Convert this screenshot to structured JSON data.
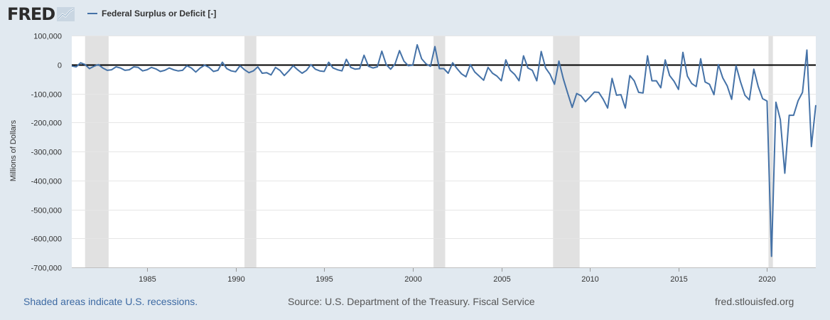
{
  "header": {
    "logo_text": "FRED",
    "logo_icon": "trend-chart-icon"
  },
  "footer": {
    "recession_note": "Shaded areas indicate U.S. recessions.",
    "source": "Source: U.S. Department of the Treasury. Fiscal Service",
    "site": "fred.stlouisfed.org"
  },
  "chart_data": {
    "type": "line",
    "title": "",
    "ylabel": "Millions of Dollars",
    "xlabel": "",
    "x_range": [
      1980.75,
      2022.75
    ],
    "ylim": [
      -700000,
      100000
    ],
    "y_ticks": [
      100000,
      0,
      -100000,
      -200000,
      -300000,
      -400000,
      -500000,
      -600000,
      -700000
    ],
    "y_tick_labels": [
      "100,000",
      "0",
      "-100,000",
      "-200,000",
      "-300,000",
      "-400,000",
      "-500,000",
      "-600,000",
      "-700,000"
    ],
    "x_ticks": [
      1985,
      1990,
      1995,
      2000,
      2005,
      2010,
      2015,
      2020
    ],
    "x_tick_labels": [
      "1985",
      "1990",
      "1995",
      "2000",
      "2005",
      "2010",
      "2015",
      "2020"
    ],
    "grid": true,
    "zero_line": true,
    "legend_position": "top-left",
    "recessions": [
      [
        1981.5,
        1982.83
      ],
      [
        1990.5,
        1991.17
      ],
      [
        2001.17,
        2001.83
      ],
      [
        2007.92,
        2009.42
      ],
      [
        2020.08,
        2020.33
      ]
    ],
    "series": [
      {
        "name": "Federal Surplus or Deficit [-]",
        "color": "#4572a7",
        "x": [
          1980.75,
          1981.0,
          1981.25,
          1981.5,
          1981.75,
          1982.0,
          1982.25,
          1982.5,
          1982.75,
          1983.0,
          1983.25,
          1983.5,
          1983.75,
          1984.0,
          1984.25,
          1984.5,
          1984.75,
          1985.0,
          1985.25,
          1985.5,
          1985.75,
          1986.0,
          1986.25,
          1986.5,
          1986.75,
          1987.0,
          1987.25,
          1987.5,
          1987.75,
          1988.0,
          1988.25,
          1988.5,
          1988.75,
          1989.0,
          1989.25,
          1989.5,
          1989.75,
          1990.0,
          1990.25,
          1990.5,
          1990.75,
          1991.0,
          1991.25,
          1991.5,
          1991.75,
          1992.0,
          1992.25,
          1992.5,
          1992.75,
          1993.0,
          1993.25,
          1993.5,
          1993.75,
          1994.0,
          1994.25,
          1994.5,
          1994.75,
          1995.0,
          1995.25,
          1995.5,
          1995.75,
          1996.0,
          1996.25,
          1996.5,
          1996.75,
          1997.0,
          1997.25,
          1997.5,
          1997.75,
          1998.0,
          1998.25,
          1998.5,
          1998.75,
          1999.0,
          1999.25,
          1999.5,
          1999.75,
          2000.0,
          2000.25,
          2000.5,
          2000.75,
          2001.0,
          2001.25,
          2001.5,
          2001.75,
          2002.0,
          2002.25,
          2002.5,
          2002.75,
          2003.0,
          2003.25,
          2003.5,
          2003.75,
          2004.0,
          2004.25,
          2004.5,
          2004.75,
          2005.0,
          2005.25,
          2005.5,
          2005.75,
          2006.0,
          2006.25,
          2006.5,
          2006.75,
          2007.0,
          2007.25,
          2007.5,
          2007.75,
          2008.0,
          2008.25,
          2008.5,
          2008.75,
          2009.0,
          2009.25,
          2009.5,
          2009.75,
          2010.0,
          2010.25,
          2010.5,
          2010.75,
          2011.0,
          2011.25,
          2011.5,
          2011.75,
          2012.0,
          2012.25,
          2012.5,
          2012.75,
          2013.0,
          2013.25,
          2013.5,
          2013.75,
          2014.0,
          2014.25,
          2014.5,
          2014.75,
          2015.0,
          2015.25,
          2015.5,
          2015.75,
          2016.0,
          2016.25,
          2016.5,
          2016.75,
          2017.0,
          2017.25,
          2017.5,
          2017.75,
          2018.0,
          2018.25,
          2018.5,
          2018.75,
          2019.0,
          2019.25,
          2019.5,
          2019.75,
          2020.0,
          2020.25,
          2020.5,
          2020.75,
          2021.0,
          2021.25,
          2021.5,
          2021.75,
          2022.0,
          2022.25,
          2022.5,
          2022.75
        ],
        "y": [
          -5000,
          -8000,
          6000,
          0,
          -14000,
          -6000,
          0,
          -12000,
          -20000,
          -18000,
          -8000,
          -12000,
          -20000,
          -18000,
          -8000,
          -10000,
          -22000,
          -18000,
          -10000,
          -15000,
          -24000,
          -20000,
          -12000,
          -18000,
          -22000,
          -20000,
          -4000,
          -12000,
          -26000,
          -12000,
          -2000,
          -10000,
          -24000,
          -20000,
          8000,
          -14000,
          -22000,
          -25000,
          -4000,
          -18000,
          -28000,
          -22000,
          -8000,
          -30000,
          -28000,
          -36000,
          -10000,
          -20000,
          -38000,
          -22000,
          -4000,
          -18000,
          -30000,
          -20000,
          0,
          -16000,
          -22000,
          -24000,
          8000,
          -12000,
          -18000,
          -22000,
          18000,
          -10000,
          -16000,
          -14000,
          32000,
          -6000,
          -12000,
          -8000,
          46000,
          0,
          -16000,
          2000,
          48000,
          12000,
          -4000,
          -2000,
          68000,
          20000,
          2000,
          -6000,
          62000,
          -14000,
          -14000,
          -30000,
          6000,
          -14000,
          -32000,
          -42000,
          0,
          -26000,
          -40000,
          -54000,
          -10000,
          -30000,
          -40000,
          -56000,
          16000,
          -20000,
          -34000,
          -56000,
          30000,
          -12000,
          -20000,
          -56000,
          45000,
          -12000,
          -34000,
          -68000,
          12000,
          -50000,
          -100000,
          -148000,
          -100000,
          -108000,
          -128000,
          -112000,
          -95000,
          -96000,
          -120000,
          -150000,
          -48000,
          -106000,
          -104000,
          -150000,
          -38000,
          -56000,
          -96000,
          -98000,
          30000,
          -56000,
          -56000,
          -80000,
          16000,
          -38000,
          -58000,
          -86000,
          42000,
          -40000,
          -66000,
          -76000,
          20000,
          -60000,
          -68000,
          -104000,
          0,
          -46000,
          -74000,
          -120000,
          -4000,
          -60000,
          -106000,
          -122000,
          -16000,
          -76000,
          -118000,
          -126000,
          -662000,
          -130000,
          -190000,
          -375000,
          -175000,
          -175000,
          -125000,
          -96000,
          50000,
          -283000,
          -140000
        ]
      }
    ]
  }
}
